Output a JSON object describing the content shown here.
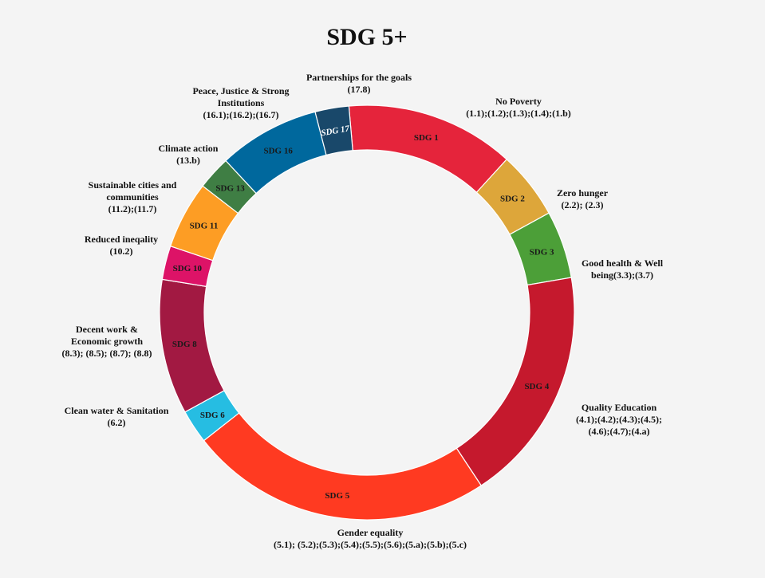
{
  "chart_data": {
    "type": "pie",
    "title": "SDG 5+",
    "series": [
      {
        "label": "SDG 1",
        "value": 5,
        "color": "#e5243b",
        "name": "No Poverty",
        "targets": "(1.1);(1.2);(1.3);(1.4);(1.b)"
      },
      {
        "label": "SDG 2",
        "value": 2,
        "color": "#dda63a",
        "name": "Zero hunger",
        "targets": "(2.2); (2.3)"
      },
      {
        "label": "SDG 3",
        "value": 2,
        "color": "#4c9f38",
        "name": "Good health & Well being",
        "targets": "(3.3);(3.7)"
      },
      {
        "label": "SDG 4",
        "value": 7,
        "color": "#c5192d",
        "name": "Quality Education",
        "targets": "(4.1);(4.2);(4.3);(4.5);(4.6);(4.7);(4.a)"
      },
      {
        "label": "SDG 5",
        "value": 9,
        "color": "#ff3a21",
        "name": "Gender equality",
        "targets": "(5.1); (5.2);(5.3);(5.4);(5.5);(5.6);(5.a);(5.b);(5.c)"
      },
      {
        "label": "SDG 6",
        "value": 1,
        "color": "#26bde2",
        "name": "Clean water & Sanitation",
        "targets": "(6.2)"
      },
      {
        "label": "SDG 8",
        "value": 4,
        "color": "#a21942",
        "name": "Decent work & Economic growth",
        "targets": "(8.3); (8.5); (8.7); (8.8)"
      },
      {
        "label": "SDG 10",
        "value": 1,
        "color": "#dd1367",
        "name": "Reduced ineqality",
        "targets": "(10.2)"
      },
      {
        "label": "SDG 11",
        "value": 2,
        "color": "#fd9d24",
        "name": "Sustainable cities and communities",
        "targets": "(11.2);(11.7)"
      },
      {
        "label": "SDG 13",
        "value": 1,
        "color": "#3f7e44",
        "name": "Climate action",
        "targets": "(13.b)"
      },
      {
        "label": "SDG 16",
        "value": 3,
        "color": "#00689d",
        "name": "Peace, Justice & Strong Institutions",
        "targets": "(16.1);(16.2);(16.7)"
      },
      {
        "label": "SDG 17",
        "value": 1,
        "color": "#19486a",
        "name": "Partnerships for the goals",
        "targets": "(17.8)"
      }
    ]
  },
  "callouts": [
    {
      "lines": [
        "No Poverty",
        "(1.1);(1.2);(1.3);(1.4);(1.b)"
      ]
    },
    {
      "lines": [
        "Zero hunger",
        "(2.2); (2.3)"
      ]
    },
    {
      "lines": [
        "Good health & Well",
        "being(3.3);(3.7)"
      ]
    },
    {
      "lines": [
        "Quality Education",
        "(4.1);(4.2);(4.3);(4.5);",
        "(4.6);(4.7);(4.a)"
      ]
    },
    {
      "lines": [
        "Gender equality",
        "(5.1); (5.2);(5.3);(5.4);(5.5);(5.6);(5.a);(5.b);(5.c)"
      ]
    },
    {
      "lines": [
        "Clean water & Sanitation",
        "(6.2)"
      ]
    },
    {
      "lines": [
        "Decent work &",
        "Economic growth",
        "(8.3); (8.5); (8.7); (8.8)"
      ]
    },
    {
      "lines": [
        "Reduced ineqality",
        "(10.2)"
      ]
    },
    {
      "lines": [
        "Sustainable cities and",
        "communities",
        "(11.2);(11.7)"
      ]
    },
    {
      "lines": [
        "Climate action",
        "(13.b)"
      ]
    },
    {
      "lines": [
        "Peace, Justice & Strong",
        "Institutions",
        "(16.1);(16.2);(16.7)"
      ]
    },
    {
      "lines": [
        "Partnerships for the goals",
        "(17.8)"
      ]
    }
  ]
}
